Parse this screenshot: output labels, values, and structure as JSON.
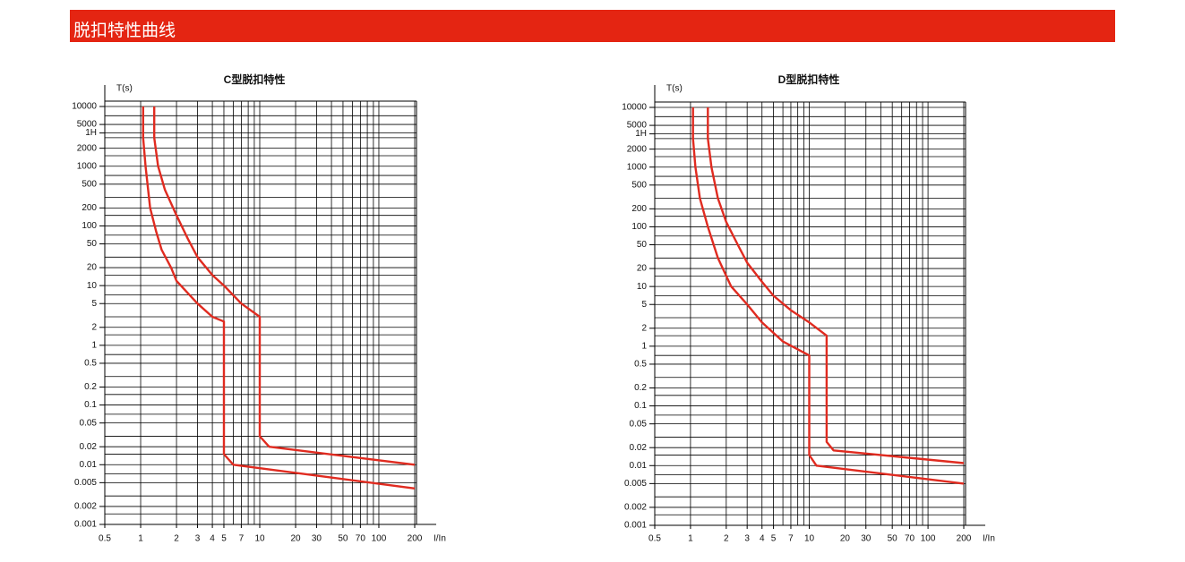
{
  "header": {
    "title": "脱扣特性曲线"
  },
  "chart_data": [
    {
      "type": "line",
      "title": "C型脱扣特性",
      "y_label": "T(s)",
      "x_label": "I/In",
      "log_x": true,
      "log_y": true,
      "grid": true,
      "xlim": [
        0.5,
        200
      ],
      "ylim": [
        0.001,
        10000
      ],
      "xticks": [
        0.5,
        1,
        2,
        3,
        4,
        5,
        7,
        10,
        20,
        30,
        50,
        70,
        100,
        200
      ],
      "yticks": [
        10000,
        5000,
        {
          "value": 3600,
          "label": "1H"
        },
        2000,
        1000,
        500,
        200,
        100,
        50,
        20,
        10,
        5,
        2,
        1,
        0.5,
        0.2,
        0.1,
        0.05,
        0.02,
        0.01,
        0.005,
        0.002,
        0.001
      ],
      "x_minor_grid": [
        6,
        8,
        9,
        40,
        60,
        80,
        90
      ],
      "y_minor_grid": [
        0.0015,
        0.003,
        0.007,
        0.015,
        0.03,
        0.07,
        0.15,
        0.3,
        0.7,
        1.5,
        3,
        7,
        15,
        30,
        70,
        150,
        300,
        700,
        1500,
        3000,
        7000
      ],
      "series": [
        {
          "color": "#e02b20",
          "x": [
            1.05,
            1.05,
            1.1,
            1.2,
            1.35,
            1.5,
            1.8,
            2,
            3,
            4,
            5,
            5,
            6,
            200
          ],
          "values": [
            10000,
            3000,
            1000,
            200,
            80,
            40,
            20,
            12,
            5,
            3,
            2.5,
            0.015,
            0.01,
            0.004
          ]
        },
        {
          "color": "#e02b20",
          "x": [
            1.3,
            1.3,
            1.4,
            1.6,
            2,
            2.5,
            3,
            4,
            5,
            7,
            10,
            10,
            12,
            200
          ],
          "values": [
            10000,
            3000,
            1000,
            400,
            150,
            60,
            30,
            15,
            10,
            5,
            3,
            0.03,
            0.02,
            0.01
          ]
        }
      ]
    },
    {
      "type": "line",
      "title": "D型脱扣特性",
      "y_label": "T(s)",
      "x_label": "I/In",
      "log_x": true,
      "log_y": true,
      "grid": true,
      "xlim": [
        0.5,
        200
      ],
      "ylim": [
        0.001,
        10000
      ],
      "xticks": [
        0.5,
        1,
        2,
        3,
        4,
        5,
        7,
        10,
        20,
        30,
        50,
        70,
        100,
        200
      ],
      "yticks": [
        10000,
        5000,
        {
          "value": 3600,
          "label": "1H"
        },
        2000,
        1000,
        500,
        200,
        100,
        50,
        20,
        10,
        5,
        2,
        1,
        0.5,
        0.2,
        0.1,
        0.05,
        0.02,
        0.01,
        0.005,
        0.002,
        0.001
      ],
      "x_minor_grid": [
        6,
        8,
        9,
        40,
        60,
        80,
        90
      ],
      "y_minor_grid": [
        0.0015,
        0.003,
        0.007,
        0.015,
        0.03,
        0.07,
        0.15,
        0.3,
        0.7,
        1.5,
        3,
        7,
        15,
        30,
        70,
        150,
        300,
        700,
        1500,
        3000,
        7000
      ],
      "series": [
        {
          "color": "#e02b20",
          "x": [
            1.05,
            1.05,
            1.1,
            1.2,
            1.4,
            1.7,
            2.2,
            3,
            4,
            6,
            10,
            10,
            11.5,
            200
          ],
          "values": [
            10000,
            3000,
            1000,
            300,
            100,
            30,
            10,
            5,
            2.5,
            1.2,
            0.7,
            0.015,
            0.01,
            0.005
          ]
        },
        {
          "color": "#e02b20",
          "x": [
            1.4,
            1.4,
            1.5,
            1.7,
            2,
            2.5,
            3,
            4,
            5,
            7,
            10,
            14,
            14,
            16,
            200
          ],
          "values": [
            10000,
            3000,
            1000,
            300,
            120,
            50,
            25,
            12,
            7,
            4,
            2.5,
            1.5,
            0.025,
            0.018,
            0.011
          ]
        }
      ]
    }
  ]
}
